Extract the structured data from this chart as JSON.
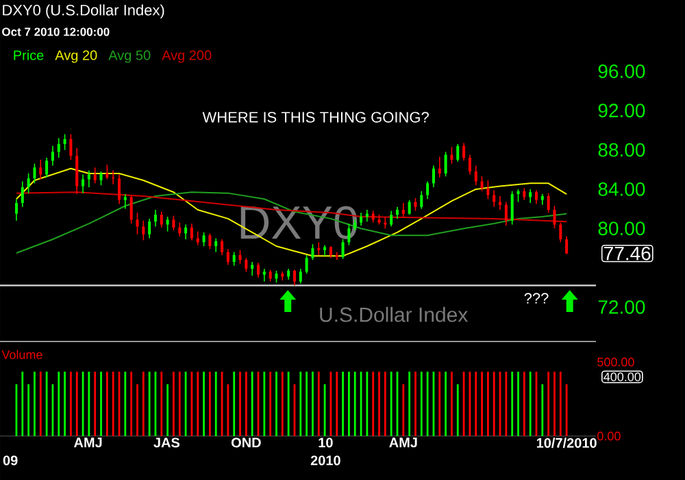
{
  "chart_data": [
    {
      "type": "candlestick",
      "title": "DXY0 (U.S.Dollar Index)",
      "subtitle": "Oct 7 2010 12:00:00",
      "annotations": [
        "WHERE IS THIS THING GOING?",
        "???",
        "DXY0",
        "U.S.Dollar Index",
        {
          "text": "77.46",
          "x": "2010-10-07",
          "y": 77.46
        }
      ],
      "x": [
        "2009-01-08",
        "2009-01-15",
        "2009-01-22",
        "2009-01-29",
        "2009-02-05",
        "2009-02-12",
        "2009-02-19",
        "2009-02-26",
        "2009-03-05",
        "2009-03-12",
        "2009-03-19",
        "2009-03-26",
        "2009-04-02",
        "2009-04-09",
        "2009-04-16",
        "2009-04-23",
        "2009-04-30",
        "2009-05-07",
        "2009-05-14",
        "2009-05-21",
        "2009-05-28",
        "2009-06-04",
        "2009-06-11",
        "2009-06-18",
        "2009-06-25",
        "2009-07-02",
        "2009-07-09",
        "2009-07-16",
        "2009-07-23",
        "2009-07-30",
        "2009-08-06",
        "2009-08-13",
        "2009-08-20",
        "2009-08-27",
        "2009-09-03",
        "2009-09-10",
        "2009-09-17",
        "2009-09-24",
        "2009-10-01",
        "2009-10-08",
        "2009-10-15",
        "2009-10-22",
        "2009-10-29",
        "2009-11-05",
        "2009-11-12",
        "2009-11-19",
        "2009-11-26",
        "2009-12-03",
        "2009-12-10",
        "2009-12-17",
        "2009-12-24",
        "2009-12-31",
        "2010-01-07",
        "2010-01-14",
        "2010-01-21",
        "2010-01-28",
        "2010-02-04",
        "2010-02-11",
        "2010-02-18",
        "2010-02-25",
        "2010-03-04",
        "2010-03-11",
        "2010-03-18",
        "2010-03-25",
        "2010-04-01",
        "2010-04-08",
        "2010-04-15",
        "2010-04-22",
        "2010-04-29",
        "2010-05-06",
        "2010-05-13",
        "2010-05-20",
        "2010-05-27",
        "2010-06-03",
        "2010-06-10",
        "2010-06-17",
        "2010-06-24",
        "2010-07-01",
        "2010-07-08",
        "2010-07-15",
        "2010-07-22",
        "2010-07-29",
        "2010-08-05",
        "2010-08-12",
        "2010-08-19",
        "2010-08-26",
        "2010-09-02",
        "2010-09-09",
        "2010-09-16",
        "2010-09-23",
        "2010-09-30",
        "2010-10-07"
      ],
      "series": [
        {
          "name": "Price",
          "type": "candlestick",
          "color": "#00ff00",
          "ohlc": [
            [
              81.5,
              83.0,
              80.8,
              82.6
            ],
            [
              82.6,
              84.8,
              82.2,
              84.2
            ],
            [
              84.2,
              85.6,
              83.6,
              85.1
            ],
            [
              85.1,
              86.6,
              84.6,
              86.2
            ],
            [
              86.2,
              87.0,
              85.0,
              85.5
            ],
            [
              85.5,
              87.2,
              85.2,
              86.9
            ],
            [
              86.9,
              88.4,
              86.4,
              87.8
            ],
            [
              87.8,
              89.2,
              87.2,
              88.6
            ],
            [
              88.6,
              89.6,
              88.0,
              89.1
            ],
            [
              89.1,
              89.6,
              87.0,
              87.4
            ],
            [
              87.4,
              88.2,
              83.5,
              84.3
            ],
            [
              84.3,
              85.5,
              83.6,
              85.0
            ],
            [
              85.0,
              85.9,
              84.2,
              85.5
            ],
            [
              85.5,
              86.2,
              84.6,
              84.9
            ],
            [
              84.9,
              85.8,
              84.4,
              85.6
            ],
            [
              85.6,
              86.5,
              85.0,
              85.2
            ],
            [
              85.2,
              85.9,
              84.5,
              85.1
            ],
            [
              85.1,
              85.5,
              82.5,
              82.9
            ],
            [
              82.9,
              83.5,
              82.0,
              83.2
            ],
            [
              83.2,
              83.3,
              80.5,
              80.9
            ],
            [
              80.9,
              81.6,
              79.4,
              80.2
            ],
            [
              80.2,
              80.8,
              78.8,
              79.4
            ],
            [
              79.4,
              81.0,
              79.0,
              80.7
            ],
            [
              80.7,
              81.9,
              80.2,
              81.4
            ],
            [
              81.4,
              81.7,
              80.1,
              80.4
            ],
            [
              80.4,
              81.2,
              79.7,
              80.9
            ],
            [
              80.9,
              81.3,
              79.8,
              80.1
            ],
            [
              80.1,
              80.6,
              79.2,
              79.5
            ],
            [
              79.5,
              80.4,
              78.9,
              80.1
            ],
            [
              80.1,
              80.5,
              78.8,
              79.0
            ],
            [
              79.0,
              79.7,
              78.3,
              78.6
            ],
            [
              78.6,
              79.6,
              78.2,
              79.3
            ],
            [
              79.3,
              79.5,
              77.9,
              78.2
            ],
            [
              78.2,
              79.0,
              77.6,
              78.7
            ],
            [
              78.7,
              78.9,
              77.3,
              77.6
            ],
            [
              77.6,
              77.9,
              76.3,
              76.6
            ],
            [
              76.6,
              77.6,
              76.2,
              77.3
            ],
            [
              77.3,
              77.8,
              76.4,
              76.8
            ],
            [
              76.8,
              77.0,
              75.6,
              75.9
            ],
            [
              75.9,
              76.6,
              75.2,
              76.3
            ],
            [
              76.3,
              76.5,
              75.0,
              75.3
            ],
            [
              75.3,
              75.9,
              74.6,
              75.6
            ],
            [
              75.6,
              75.8,
              74.6,
              74.9
            ],
            [
              74.9,
              75.7,
              74.5,
              75.4
            ],
            [
              75.4,
              75.6,
              74.7,
              75.1
            ],
            [
              75.1,
              75.9,
              74.8,
              75.7
            ],
            [
              75.7,
              75.8,
              74.2,
              74.6
            ],
            [
              74.6,
              75.9,
              74.4,
              75.6
            ],
            [
              75.6,
              77.3,
              75.4,
              77.0
            ],
            [
              77.0,
              78.4,
              76.8,
              78.0
            ],
            [
              78.0,
              78.6,
              77.3,
              77.8
            ],
            [
              77.8,
              78.3,
              77.2,
              78.1
            ],
            [
              78.1,
              78.2,
              77.0,
              77.3
            ],
            [
              77.3,
              77.6,
              76.8,
              77.1
            ],
            [
              77.1,
              78.9,
              76.9,
              78.6
            ],
            [
              78.6,
              80.5,
              78.3,
              80.0
            ],
            [
              80.0,
              80.9,
              79.8,
              80.6
            ],
            [
              80.6,
              81.6,
              80.3,
              81.2
            ],
            [
              81.2,
              81.9,
              80.7,
              81.5
            ],
            [
              81.5,
              81.8,
              80.6,
              80.9
            ],
            [
              80.9,
              81.4,
              80.4,
              80.6
            ],
            [
              80.6,
              81.2,
              80.0,
              80.4
            ],
            [
              80.4,
              81.8,
              80.2,
              81.4
            ],
            [
              81.4,
              82.2,
              81.0,
              81.9
            ],
            [
              81.9,
              82.6,
              81.2,
              81.5
            ],
            [
              81.5,
              82.9,
              81.4,
              82.7
            ],
            [
              82.7,
              83.1,
              81.8,
              82.2
            ],
            [
              82.2,
              83.8,
              82.0,
              83.4
            ],
            [
              83.4,
              84.8,
              83.0,
              84.6
            ],
            [
              84.6,
              86.4,
              84.2,
              86.1
            ],
            [
              86.1,
              87.3,
              85.2,
              85.6
            ],
            [
              85.6,
              87.8,
              85.3,
              87.5
            ],
            [
              87.5,
              88.3,
              86.6,
              87.0
            ],
            [
              87.0,
              88.6,
              86.8,
              88.4
            ],
            [
              88.4,
              88.7,
              86.9,
              87.2
            ],
            [
              87.2,
              87.5,
              85.5,
              85.8
            ],
            [
              85.8,
              86.4,
              84.4,
              84.8
            ],
            [
              84.8,
              85.3,
              83.8,
              84.1
            ],
            [
              84.1,
              84.9,
              83.0,
              83.4
            ],
            [
              83.4,
              83.9,
              82.2,
              82.7
            ],
            [
              82.7,
              83.3,
              81.9,
              82.4
            ],
            [
              82.4,
              82.7,
              80.3,
              80.8
            ],
            [
              80.8,
              83.8,
              80.4,
              83.5
            ],
            [
              83.5,
              84.0,
              82.7,
              83.8
            ],
            [
              83.8,
              84.1,
              82.9,
              83.2
            ],
            [
              83.2,
              84.0,
              82.6,
              83.7
            ],
            [
              83.7,
              83.9,
              82.5,
              82.9
            ],
            [
              82.9,
              83.5,
              82.4,
              83.3
            ],
            [
              83.3,
              83.6,
              81.6,
              81.9
            ],
            [
              81.9,
              82.3,
              80.0,
              80.4
            ],
            [
              80.4,
              80.6,
              78.6,
              78.9
            ],
            [
              78.9,
              79.2,
              77.4,
              77.46
            ]
          ],
          "colors": [
            "#00ff00",
            "#00ff00",
            "#00ff00",
            "#00ff00",
            "#ff0000",
            "#00ff00",
            "#00ff00",
            "#00ff00",
            "#00ff00",
            "#ff0000",
            "#ff0000",
            "#00ff00",
            "#00ff00",
            "#ff0000",
            "#00ff00",
            "#ff0000",
            "#ff0000",
            "#ff0000",
            "#00ff00",
            "#ff0000",
            "#ff0000",
            "#ff0000",
            "#00ff00",
            "#00ff00",
            "#ff0000",
            "#00ff00",
            "#ff0000",
            "#ff0000",
            "#00ff00",
            "#ff0000",
            "#ff0000",
            "#00ff00",
            "#ff0000",
            "#00ff00",
            "#ff0000",
            "#ff0000",
            "#00ff00",
            "#ff0000",
            "#ff0000",
            "#00ff00",
            "#ff0000",
            "#00ff00",
            "#ff0000",
            "#00ff00",
            "#ff0000",
            "#00ff00",
            "#ff0000",
            "#00ff00",
            "#00ff00",
            "#00ff00",
            "#ff0000",
            "#00ff00",
            "#ff0000",
            "#ff0000",
            "#00ff00",
            "#00ff00",
            "#00ff00",
            "#00ff00",
            "#00ff00",
            "#ff0000",
            "#ff0000",
            "#ff0000",
            "#00ff00",
            "#00ff00",
            "#ff0000",
            "#00ff00",
            "#ff0000",
            "#00ff00",
            "#00ff00",
            "#00ff00",
            "#ff0000",
            "#00ff00",
            "#ff0000",
            "#00ff00",
            "#ff0000",
            "#ff0000",
            "#ff0000",
            "#ff0000",
            "#ff0000",
            "#ff0000",
            "#ff0000",
            "#ff0000",
            "#00ff00",
            "#00ff00",
            "#ff0000",
            "#00ff00",
            "#ff0000",
            "#00ff00",
            "#ff0000",
            "#ff0000",
            "#ff0000",
            "#ff0000"
          ]
        },
        {
          "name": "Avg 20",
          "type": "line",
          "color": "#f0f000",
          "x": [
            "2009-01-08",
            "2009-01-29",
            "2009-03-12",
            "2009-04-02",
            "2009-05-07",
            "2009-06-04",
            "2009-07-09",
            "2009-08-06",
            "2009-09-10",
            "2009-10-08",
            "2009-11-05",
            "2009-11-26",
            "2009-12-17",
            "2010-01-21",
            "2010-02-18",
            "2010-03-25",
            "2010-04-22",
            "2010-05-27",
            "2010-06-24",
            "2010-07-22",
            "2010-08-26",
            "2010-09-16",
            "2010-10-07"
          ],
          "values": [
            83.0,
            84.9,
            86.1,
            85.6,
            85.6,
            84.9,
            83.7,
            81.9,
            81.0,
            79.6,
            78.2,
            77.7,
            77.2,
            77.2,
            78.2,
            79.6,
            81.0,
            82.8,
            84.0,
            84.3,
            84.6,
            84.6,
            83.5
          ]
        },
        {
          "name": "Avg 50",
          "type": "line",
          "color": "#20a020",
          "x": [
            "2009-01-08",
            "2009-02-19",
            "2009-04-02",
            "2009-05-14",
            "2009-06-18",
            "2009-07-30",
            "2009-09-10",
            "2009-10-22",
            "2009-11-26",
            "2010-01-07",
            "2010-02-11",
            "2010-03-18",
            "2010-04-29",
            "2010-06-10",
            "2010-07-15",
            "2010-08-12",
            "2010-09-09",
            "2010-10-07"
          ],
          "values": [
            77.5,
            78.9,
            80.5,
            82.3,
            83.3,
            83.7,
            83.6,
            83.0,
            81.7,
            81.0,
            80.0,
            79.3,
            79.3,
            80.0,
            80.5,
            81.0,
            81.2,
            81.5
          ]
        },
        {
          "name": "Avg 200",
          "type": "line",
          "color": "#d00000",
          "x": [
            "2009-01-08",
            "2009-03-19",
            "2009-06-04",
            "2009-08-20",
            "2009-11-05",
            "2010-01-07",
            "2010-02-11",
            "2010-04-29",
            "2010-07-15",
            "2010-10-07"
          ],
          "values": [
            83.6,
            83.7,
            83.3,
            82.6,
            81.9,
            81.6,
            81.2,
            81.1,
            81.0,
            80.7
          ]
        }
      ],
      "xlim": [
        "2008-12-20",
        "2010-11-10"
      ],
      "ylim": [
        68.5,
        96
      ],
      "yticks": [
        {
          "value": 72,
          "label": "72.00"
        },
        {
          "value": 80,
          "label": "80.00"
        },
        {
          "value": 84,
          "label": "84.00"
        },
        {
          "value": 88,
          "label": "88.00"
        },
        {
          "value": 92,
          "label": "92.00"
        },
        {
          "value": 96,
          "label": "96.00"
        }
      ],
      "ref_lines": [
        {
          "axis": "y",
          "value": 74.2,
          "color": "#c8c8c8"
        }
      ],
      "legend": "top left",
      "tick_labels": "y"
    },
    {
      "type": "bar",
      "title": "Volume",
      "x": [
        "2009-01-08",
        "2009-01-15",
        "2009-01-22",
        "2009-01-29",
        "2009-02-05",
        "2009-02-12",
        "2009-02-19",
        "2009-02-26",
        "2009-03-05",
        "2009-03-12",
        "2009-03-19",
        "2009-03-26",
        "2009-04-02",
        "2009-04-09",
        "2009-04-16",
        "2009-04-23",
        "2009-04-30",
        "2009-05-07",
        "2009-05-14",
        "2009-05-21",
        "2009-05-28",
        "2009-06-04",
        "2009-06-11",
        "2009-06-18",
        "2009-06-25",
        "2009-07-02",
        "2009-07-09",
        "2009-07-16",
        "2009-07-23",
        "2009-07-30",
        "2009-08-06",
        "2009-08-13",
        "2009-08-20",
        "2009-08-27",
        "2009-09-03",
        "2009-09-10",
        "2009-09-17",
        "2009-09-24",
        "2009-10-01",
        "2009-10-08",
        "2009-10-15",
        "2009-10-22",
        "2009-10-29",
        "2009-11-05",
        "2009-11-12",
        "2009-11-19",
        "2009-11-26",
        "2009-12-03",
        "2009-12-10",
        "2009-12-17",
        "2009-12-24",
        "2009-12-31",
        "2010-01-07",
        "2010-01-14",
        "2010-01-21",
        "2010-01-28",
        "2010-02-04",
        "2010-02-11",
        "2010-02-18",
        "2010-02-25",
        "2010-03-04",
        "2010-03-11",
        "2010-03-18",
        "2010-03-25",
        "2010-04-01",
        "2010-04-08",
        "2010-04-15",
        "2010-04-22",
        "2010-04-29",
        "2010-05-06",
        "2010-05-13",
        "2010-05-20",
        "2010-05-27",
        "2010-06-03",
        "2010-06-10",
        "2010-06-17",
        "2010-06-24",
        "2010-07-01",
        "2010-07-08",
        "2010-07-15",
        "2010-07-22",
        "2010-07-29",
        "2010-08-05",
        "2010-08-12",
        "2010-08-19",
        "2010-08-26",
        "2010-09-02",
        "2010-09-09",
        "2010-09-16",
        "2010-09-23",
        "2010-09-30",
        "2010-10-07"
      ],
      "values": [
        350,
        435,
        350,
        435,
        435,
        435,
        350,
        435,
        435,
        435,
        435,
        435,
        435,
        435,
        435,
        435,
        435,
        435,
        435,
        435,
        350,
        435,
        435,
        435,
        435,
        350,
        435,
        435,
        435,
        435,
        435,
        435,
        435,
        435,
        435,
        350,
        435,
        435,
        435,
        435,
        435,
        435,
        435,
        435,
        435,
        435,
        350,
        435,
        435,
        435,
        435,
        350,
        435,
        435,
        435,
        435,
        435,
        435,
        435,
        435,
        435,
        435,
        435,
        435,
        350,
        435,
        435,
        435,
        435,
        435,
        435,
        435,
        435,
        350,
        435,
        435,
        435,
        435,
        435,
        435,
        435,
        435,
        435,
        435,
        435,
        435,
        435,
        350,
        435,
        435,
        435,
        350
      ],
      "colors": [
        "#00ff00",
        "#00ff00",
        "#00ff00",
        "#00ff00",
        "#ff0000",
        "#00ff00",
        "#00ff00",
        "#00ff00",
        "#00ff00",
        "#ff0000",
        "#ff0000",
        "#00ff00",
        "#00ff00",
        "#ff0000",
        "#00ff00",
        "#ff0000",
        "#ff0000",
        "#ff0000",
        "#00ff00",
        "#ff0000",
        "#ff0000",
        "#ff0000",
        "#00ff00",
        "#00ff00",
        "#ff0000",
        "#00ff00",
        "#ff0000",
        "#ff0000",
        "#00ff00",
        "#ff0000",
        "#ff0000",
        "#00ff00",
        "#ff0000",
        "#00ff00",
        "#ff0000",
        "#ff0000",
        "#00ff00",
        "#ff0000",
        "#ff0000",
        "#00ff00",
        "#ff0000",
        "#00ff00",
        "#ff0000",
        "#00ff00",
        "#ff0000",
        "#00ff00",
        "#ff0000",
        "#00ff00",
        "#00ff00",
        "#00ff00",
        "#ff0000",
        "#00ff00",
        "#ff0000",
        "#ff0000",
        "#00ff00",
        "#00ff00",
        "#00ff00",
        "#00ff00",
        "#00ff00",
        "#ff0000",
        "#ff0000",
        "#ff0000",
        "#00ff00",
        "#00ff00",
        "#ff0000",
        "#00ff00",
        "#ff0000",
        "#00ff00",
        "#00ff00",
        "#00ff00",
        "#ff0000",
        "#00ff00",
        "#ff0000",
        "#00ff00",
        "#ff0000",
        "#ff0000",
        "#ff0000",
        "#ff0000",
        "#ff0000",
        "#ff0000",
        "#ff0000",
        "#ff0000",
        "#00ff00",
        "#00ff00",
        "#ff0000",
        "#00ff00",
        "#ff0000",
        "#00ff00",
        "#ff0000",
        "#ff0000",
        "#ff0000",
        "#ff0000"
      ],
      "annotations": [
        "400.00"
      ],
      "xlim": [
        "2008-12-20",
        "2010-11-10"
      ],
      "x2lim": [
        "2008-12-20",
        "2010-11-10"
      ],
      "ylim": [
        0,
        500
      ],
      "yticks": [
        {
          "value": 0,
          "label": "0.00"
        },
        {
          "value": 500,
          "label": "500.00"
        }
      ],
      "xticks": [
        {
          "value": "2009-04-01",
          "label": "AMJ"
        },
        {
          "value": "2009-07-01",
          "label": "JAS"
        },
        {
          "value": "2009-10-01",
          "label": "OND"
        },
        {
          "value": "2010-01-01",
          "label": "10"
        },
        {
          "value": "2010-04-01",
          "label": "AMJ"
        },
        {
          "value": "2010-10-07",
          "label": "10/7/2010"
        }
      ],
      "x2ticks": [
        {
          "value": "2009-01-01",
          "label": "09"
        },
        {
          "value": "2010-01-01",
          "label": "2010"
        }
      ]
    }
  ]
}
